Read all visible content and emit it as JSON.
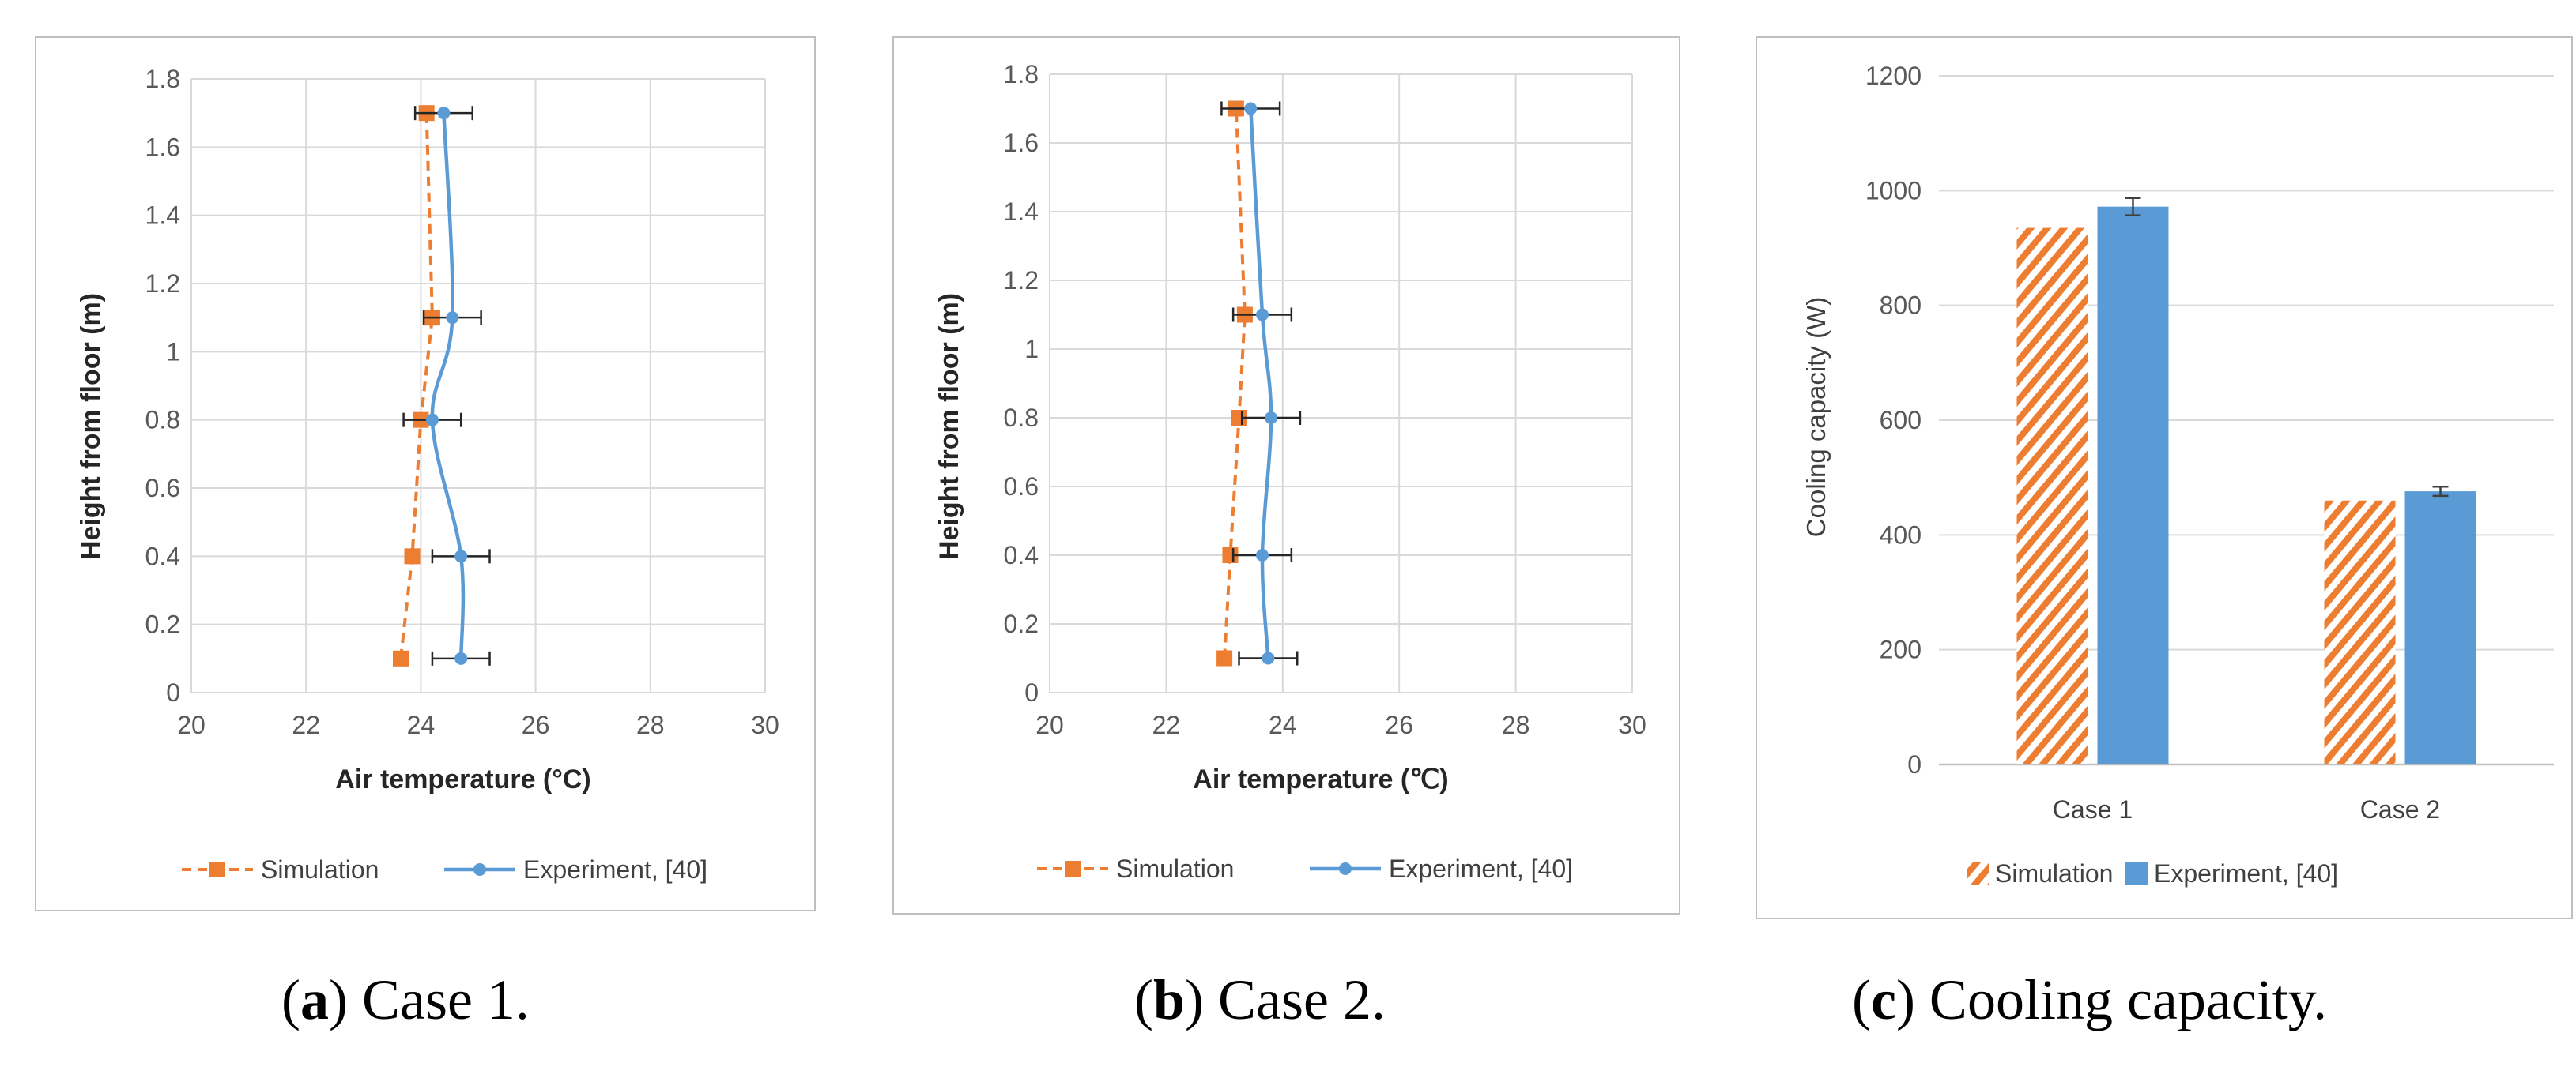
{
  "chart_data": [
    {
      "type": "line",
      "panel": "a",
      "ylabel": "Height from floor (m)",
      "xlabel": "Air temperature (°C)",
      "xlim": [
        20,
        30
      ],
      "ylim": [
        0,
        1.8
      ],
      "x_ticks": [
        "20",
        "22",
        "24",
        "26",
        "28",
        "30"
      ],
      "y_ticks": [
        "0",
        "0.2",
        "0.4",
        "0.6",
        "0.8",
        "1",
        "1.2",
        "1.4",
        "1.6",
        "1.8"
      ],
      "grid": true,
      "legend_position": "bottom",
      "series": [
        {
          "name": "Simulation",
          "style": "dashed",
          "marker": "square",
          "color": "#ED7D31",
          "points": [
            {
              "x": 23.65,
              "y": 0.1
            },
            {
              "x": 23.85,
              "y": 0.4
            },
            {
              "x": 24.0,
              "y": 0.8
            },
            {
              "x": 24.2,
              "y": 1.1
            },
            {
              "x": 24.1,
              "y": 1.7
            }
          ]
        },
        {
          "name": "Experiment, [40]",
          "style": "smooth",
          "marker": "circle",
          "color": "#5B9BD5",
          "error": 0.5,
          "points": [
            {
              "x": 24.7,
              "y": 0.1
            },
            {
              "x": 24.7,
              "y": 0.4
            },
            {
              "x": 24.2,
              "y": 0.8
            },
            {
              "x": 24.55,
              "y": 1.1
            },
            {
              "x": 24.4,
              "y": 1.7
            }
          ]
        }
      ]
    },
    {
      "type": "line",
      "panel": "b",
      "ylabel": "Height from floor (m)",
      "xlabel": "Air temperature (℃)",
      "xlim": [
        20,
        30
      ],
      "ylim": [
        0,
        1.8
      ],
      "x_ticks": [
        "20",
        "22",
        "24",
        "26",
        "28",
        "30"
      ],
      "y_ticks": [
        "0",
        "0.2",
        "0.4",
        "0.6",
        "0.8",
        "1",
        "1.2",
        "1.4",
        "1.6",
        "1.8"
      ],
      "grid": true,
      "legend_position": "bottom",
      "series": [
        {
          "name": "Simulation",
          "style": "dashed",
          "marker": "square",
          "color": "#ED7D31",
          "points": [
            {
              "x": 23.0,
              "y": 0.1
            },
            {
              "x": 23.1,
              "y": 0.4
            },
            {
              "x": 23.25,
              "y": 0.8
            },
            {
              "x": 23.35,
              "y": 1.1
            },
            {
              "x": 23.2,
              "y": 1.7
            }
          ]
        },
        {
          "name": "Experiment, [40]",
          "style": "smooth",
          "marker": "circle",
          "color": "#5B9BD5",
          "error": 0.5,
          "points": [
            {
              "x": 23.75,
              "y": 0.1
            },
            {
              "x": 23.65,
              "y": 0.4
            },
            {
              "x": 23.8,
              "y": 0.8
            },
            {
              "x": 23.65,
              "y": 1.1
            },
            {
              "x": 23.45,
              "y": 1.7
            }
          ]
        }
      ]
    },
    {
      "type": "bar",
      "panel": "c",
      "ylabel": "Cooling capacity (W)",
      "xlabel": "",
      "ylim": [
        0,
        1200
      ],
      "y_ticks": [
        "0",
        "200",
        "400",
        "600",
        "800",
        "1000",
        "1200"
      ],
      "categories": [
        "Case 1",
        "Case 2"
      ],
      "grid": true,
      "legend_position": "bottom",
      "series": [
        {
          "name": "Simulation",
          "pattern": "hatched",
          "color": "#ED7D31",
          "values": [
            935,
            460
          ]
        },
        {
          "name": "Experiment, [40]",
          "pattern": "solid",
          "color": "#5B9BD5",
          "values": [
            972,
            476
          ],
          "errors": [
            15,
            8
          ]
        }
      ]
    }
  ],
  "captions": [
    {
      "label": "a",
      "text": ") Case 1."
    },
    {
      "label": "b",
      "text": ") Case 2."
    },
    {
      "label": "c",
      "text": ") Cooling capacity."
    }
  ]
}
